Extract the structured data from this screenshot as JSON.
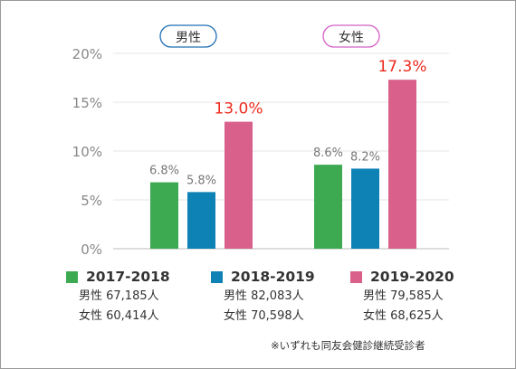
{
  "chart_data": {
    "type": "bar",
    "categories": [
      "男性",
      "女性"
    ],
    "series": [
      {
        "name": "2017-2018",
        "values": [
          6.8,
          8.6
        ],
        "labels": [
          "6.8%",
          "8.6%"
        ],
        "color": "#3daa52",
        "label_color": "#777777"
      },
      {
        "name": "2018-2019",
        "values": [
          5.8,
          8.2
        ],
        "labels": [
          "5.8%",
          "8.2%"
        ],
        "color": "#0f82b5",
        "label_color": "#777777"
      },
      {
        "name": "2019-2020",
        "values": [
          13.0,
          17.3
        ],
        "labels": [
          "13.0%",
          "17.3%"
        ],
        "color": "#d9608a",
        "label_color": "#ee2a1e"
      }
    ],
    "yticks": [
      "0%",
      "5%",
      "10%",
      "15%",
      "20%"
    ],
    "ylim": [
      0,
      20
    ],
    "unit": "%",
    "grid": true,
    "legend_position": "bottom",
    "category_colors": [
      "#1f6fb5",
      "#d45fc8"
    ]
  },
  "legend": [
    {
      "label": "2017-2018",
      "male": "男性 67,185人",
      "female": "女性 60,414人",
      "color": "#3daa52"
    },
    {
      "label": "2018-2019",
      "male": "男性 82,083人",
      "female": "女性 70,598人",
      "color": "#0f82b5"
    },
    {
      "label": "2019-2020",
      "male": "男性 79,585人",
      "female": "女性 68,625人",
      "color": "#d9608a"
    }
  ],
  "footnote": "※いずれも同友会健診継続受診者"
}
